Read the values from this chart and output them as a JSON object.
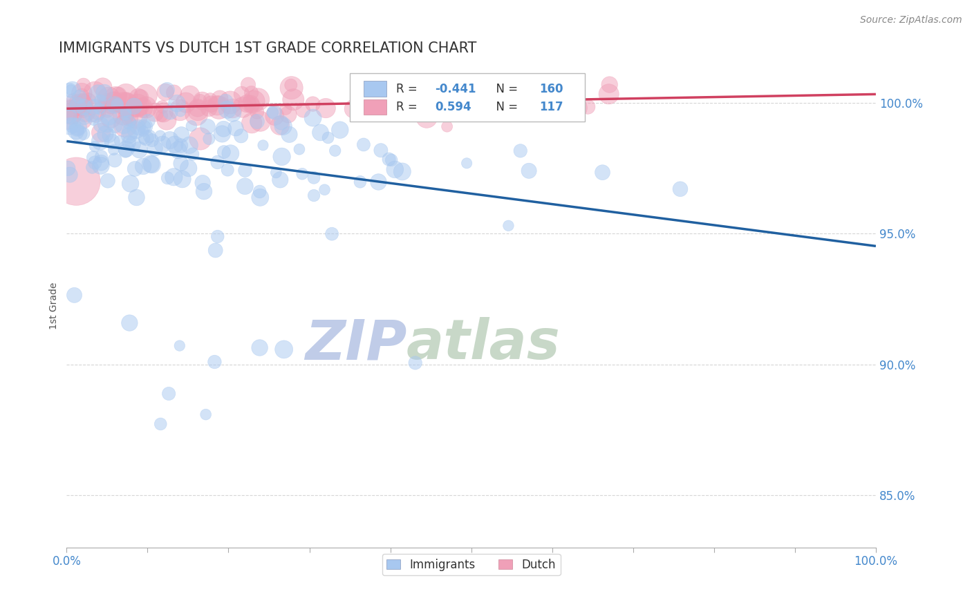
{
  "title": "IMMIGRANTS VS DUTCH 1ST GRADE CORRELATION CHART",
  "source": "Source: ZipAtlas.com",
  "ylabel": "1st Grade",
  "ytick_labels": [
    "85.0%",
    "90.0%",
    "95.0%",
    "100.0%"
  ],
  "ytick_values": [
    0.85,
    0.9,
    0.95,
    1.0
  ],
  "legend_immigrants": "Immigrants",
  "legend_dutch": "Dutch",
  "R_immigrants": -0.441,
  "N_immigrants": 160,
  "R_dutch": 0.594,
  "N_dutch": 117,
  "color_immigrants": "#A8C8F0",
  "color_dutch": "#F0A0B8",
  "color_trend_immigrants": "#2060A0",
  "color_trend_dutch": "#D04060",
  "title_color": "#333333",
  "axis_label_color": "#4488CC",
  "grid_color": "#CCCCCC",
  "watermark_zip_color": "#C0CCE8",
  "watermark_atlas_color": "#C8D8C8",
  "background_color": "#FFFFFF",
  "xlim": [
    0.0,
    1.0
  ],
  "ylim": [
    0.83,
    1.015
  ],
  "trend_imm_start_y": 0.992,
  "trend_imm_end_y": 0.95,
  "trend_dutch_start_y": 0.998,
  "trend_dutch_end_y": 1.003
}
